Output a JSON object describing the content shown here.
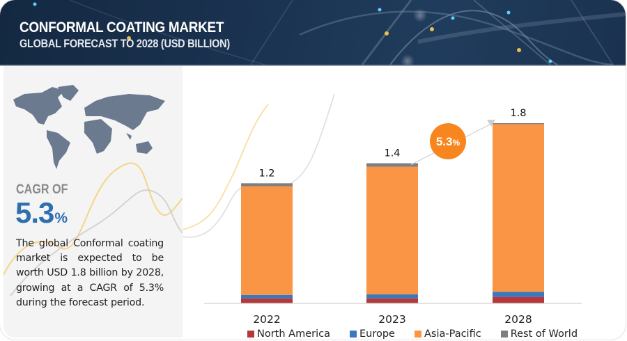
{
  "header": {
    "title": "CONFORMAL COATING MARKET",
    "subtitle": "GLOBAL FORECAST TO 2028 (USD BILLION)"
  },
  "left_panel": {
    "cagr_label": "CAGR OF",
    "cagr_value": "5.3",
    "cagr_unit": "%",
    "description": "The global Conformal coating market is expected to be worth USD 1.8 billion by 2028, growing at a CAGR of 5.3% during the forecast period."
  },
  "colors": {
    "north_america": "#b5393a",
    "europe": "#3a78c0",
    "asia_pacific": "#fb9546",
    "rest_of_world": "#7f7f7f",
    "cagr_badge": "#f7861f",
    "cagr_text": "#2e6fb0",
    "header_bg": "#1b3452"
  },
  "chart_data": {
    "type": "bar",
    "stacked": true,
    "title": "CONFORMAL COATING MARKET",
    "subtitle": "GLOBAL FORECAST TO 2028 (USD BILLION)",
    "xlabel": "",
    "ylabel": "USD Billion",
    "categories": [
      "2022",
      "2023",
      "2028"
    ],
    "series": [
      {
        "name": "North America",
        "color": "#b5393a",
        "values": [
          0.05,
          0.05,
          0.065
        ]
      },
      {
        "name": "Europe",
        "color": "#3a78c0",
        "values": [
          0.035,
          0.04,
          0.05
        ]
      },
      {
        "name": "Asia-Pacific",
        "color": "#fb9546",
        "values": [
          1.085,
          1.275,
          1.675
        ]
      },
      {
        "name": "Rest of World",
        "color": "#7f7f7f",
        "values": [
          0.03,
          0.035,
          0.01
        ]
      }
    ],
    "totals": [
      1.2,
      1.4,
      1.8
    ],
    "total_labels": [
      "1.2",
      "1.4",
      "1.8"
    ],
    "ylim": [
      0,
      1.8
    ],
    "grid": false,
    "legend_position": "bottom",
    "annotation": {
      "text": "5.3",
      "unit": "%",
      "meaning": "CAGR 2023-2028"
    }
  }
}
